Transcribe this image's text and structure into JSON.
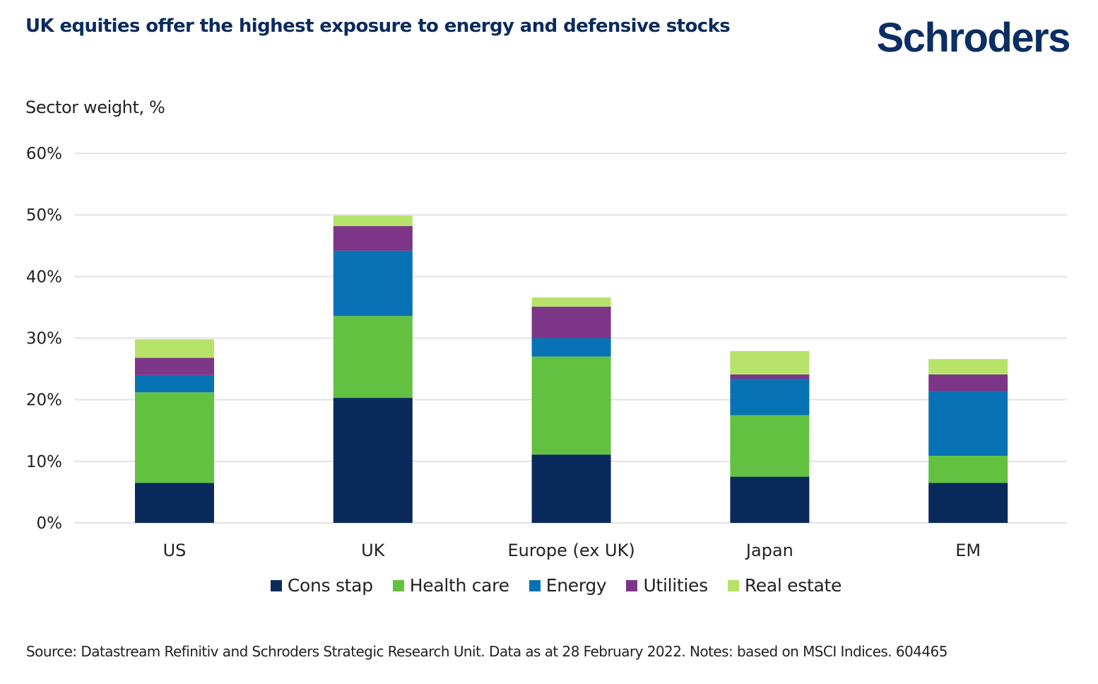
{
  "header": {
    "title": "UK equities offer the highest exposure to energy and defensive stocks",
    "logo_text": "Schroders"
  },
  "chart_data": {
    "type": "bar",
    "stacked": true,
    "title": "UK equities offer the highest exposure to energy and defensive stocks",
    "ylabel": "Sector weight, %",
    "xlabel": "",
    "ylim": [
      0,
      60
    ],
    "yticks": [
      0,
      10,
      20,
      30,
      40,
      50,
      60
    ],
    "ytick_labels": [
      "0%",
      "10%",
      "20%",
      "30%",
      "40%",
      "50%",
      "60%"
    ],
    "grid": true,
    "legend_position": "bottom",
    "categories": [
      "US",
      "UK",
      "Europe (ex UK)",
      "Japan",
      "EM"
    ],
    "series": [
      {
        "name": "Cons stap",
        "color": "#0a2a5c",
        "values": [
          6.5,
          20.3,
          11.1,
          7.5,
          6.5
        ]
      },
      {
        "name": "Health care",
        "color": "#63c141",
        "values": [
          14.7,
          13.3,
          15.9,
          10.0,
          4.4
        ]
      },
      {
        "name": "Energy",
        "color": "#0873b4",
        "values": [
          2.8,
          10.6,
          3.0,
          5.9,
          10.5
        ]
      },
      {
        "name": "Utilities",
        "color": "#7d3587",
        "values": [
          2.8,
          4.0,
          5.1,
          0.7,
          2.7
        ]
      },
      {
        "name": "Real estate",
        "color": "#b6e26a",
        "values": [
          3.0,
          1.7,
          1.5,
          3.8,
          2.5
        ]
      }
    ]
  },
  "footer": {
    "source": "Source: Datastream Refinitiv and Schroders Strategic Research Unit. Data as at 28 February 2022. Notes: based on MSCI Indices. 604465"
  }
}
